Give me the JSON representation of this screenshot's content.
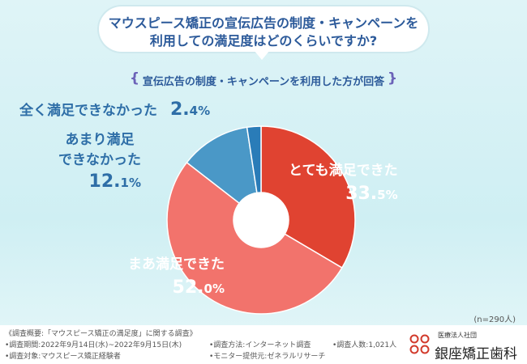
{
  "question": {
    "line1": "マウスピース矯正の宣伝広告の制度・キャンペーンを",
    "line2": "利用しての満足度はどのくらいですか?"
  },
  "subtitle": "宣伝広告の制度・キャンペーンを利用した方が回答",
  "sample_size": "(n=290人)",
  "chart_data": {
    "type": "pie",
    "title": "マウスピース矯正の宣伝広告の制度・キャンペーンを利用しての満足度はどのくらいですか?",
    "categories": [
      "とても満足できた",
      "まあ満足できた",
      "あまり満足できなかった",
      "全く満足できなかった"
    ],
    "values": [
      33.5,
      52.0,
      12.1,
      2.4
    ],
    "unit": "%",
    "colors": [
      "#e04331",
      "#f2736c",
      "#4a98c7",
      "#2a7cb8"
    ],
    "donut": true
  },
  "labels": [
    {
      "lines": [
        "とても満足できた"
      ],
      "int": "33.",
      "dec": "5%"
    },
    {
      "lines": [
        "まあ満足できた"
      ],
      "int": "52.",
      "dec": "0%"
    },
    {
      "lines": [
        "あまり満足",
        "できなかった"
      ],
      "int": "12.",
      "dec": "1%"
    },
    {
      "lines": [
        "全く満足できなかった"
      ],
      "int": "2.",
      "dec": "4%"
    }
  ],
  "footer": {
    "overview": "《調査概要:「マウスピース矯正の満足度」に関する調査》",
    "period": "•調査期間:2022年9月14日(水)~2022年9月15日(木)",
    "target": "•調査対象:マウスピース矯正経験者",
    "method": "•調査方法:インターネット調査",
    "provider": "•モニター提供元:ゼネラルリサーチ",
    "count": "•調査人数:1,021人"
  },
  "logo": {
    "sub": "医療法人社団",
    "name": "銀座矯正歯科"
  }
}
